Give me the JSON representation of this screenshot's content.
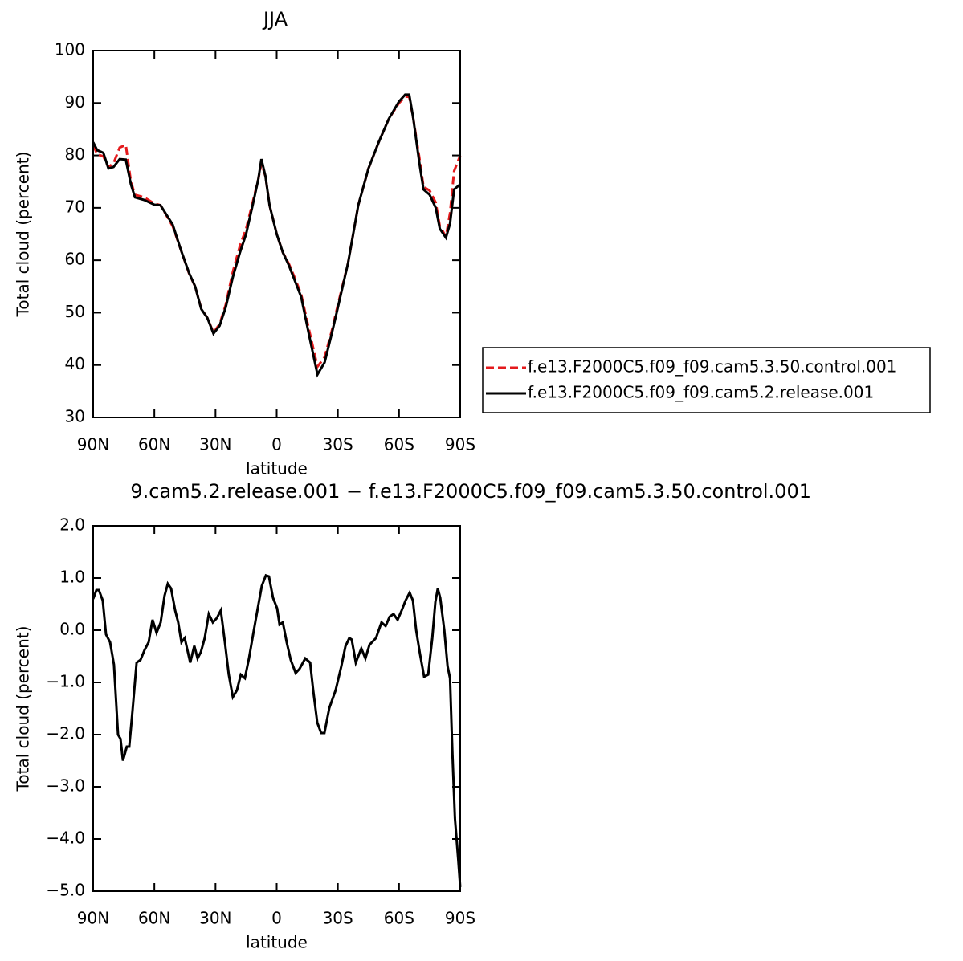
{
  "chart_data": [
    {
      "type": "line",
      "title": "JJA",
      "xlabel": "latitude",
      "ylabel": "Total cloud (percent)",
      "x": [
        90,
        88,
        85,
        82.5,
        80,
        77,
        74,
        71.5,
        69.5,
        65,
        60,
        57,
        51,
        47,
        43,
        40,
        37,
        34,
        31,
        28,
        25,
        21.5,
        18,
        15,
        11.5,
        9,
        7.5,
        5.5,
        3.5,
        0,
        -3,
        -6,
        -9,
        -12,
        -16,
        -20,
        -23.5,
        -27,
        -30,
        -35,
        -40,
        -45,
        -50,
        -55,
        -60,
        -63,
        -65,
        -67,
        -70,
        -72,
        -75,
        -78,
        -80,
        -83,
        -85,
        -87,
        -90
      ],
      "series": [
        {
          "name": "f.e13.F2000C5.f09_f09.cam5.3.50.control.001",
          "color": "#e41a1c",
          "linestyle": "dashed",
          "values": [
            82,
            80.2,
            79.8,
            77.8,
            78.5,
            81.5,
            82,
            75,
            72.5,
            72,
            70.8,
            70.5,
            66.5,
            62,
            57.5,
            55,
            50.8,
            49,
            46.2,
            47.8,
            51.5,
            57.8,
            62.8,
            66,
            71.5,
            75.5,
            78.5,
            76,
            70.5,
            65,
            61.5,
            59.3,
            56.5,
            53.5,
            46.5,
            39.7,
            41.5,
            46.5,
            51.5,
            59.5,
            70.5,
            77.5,
            82.5,
            87,
            90,
            91.2,
            91.2,
            87,
            79.5,
            74,
            73.3,
            71,
            66.5,
            64.5,
            69,
            77,
            80
          ]
        },
        {
          "name": "f.e13.F2000C5.f09_f09.cam5.2.release.001",
          "color": "#000000",
          "linestyle": "solid",
          "values": [
            82.5,
            81,
            80.5,
            77.5,
            77.8,
            79.3,
            79.2,
            74.5,
            72,
            71.5,
            70.6,
            70.5,
            66.8,
            62,
            57.6,
            55,
            50.7,
            49,
            46,
            47.5,
            51,
            56.8,
            61.5,
            65,
            71,
            75.5,
            79.3,
            76,
            70.5,
            65,
            61.5,
            59,
            56,
            53,
            45.5,
            38.2,
            40.5,
            46,
            51,
            59.5,
            70.5,
            77.5,
            82.5,
            87,
            90.3,
            91.6,
            91.6,
            87,
            78.5,
            73.5,
            72.5,
            70,
            66,
            64.3,
            67,
            73.5,
            74.5
          ]
        }
      ],
      "xlim": [
        90,
        -90
      ],
      "xticks": [
        {
          "value": 90,
          "label": "90N"
        },
        {
          "value": 60,
          "label": "60N"
        },
        {
          "value": 30,
          "label": "30N"
        },
        0,
        {
          "value": -30,
          "label": "30S"
        },
        {
          "value": -60,
          "label": "60S"
        },
        {
          "value": -90,
          "label": "90S"
        }
      ],
      "ylim": [
        30,
        100
      ],
      "yticks": [
        30,
        40,
        50,
        60,
        70,
        80,
        90,
        100
      ],
      "legend": "right"
    },
    {
      "type": "line",
      "title": "9.cam5.2.release.001 − f.e13.F2000C5.f09_f09.cam5.3.50.control.001",
      "xlabel": "latitude",
      "ylabel": "Total cloud (percent)",
      "x": [
        90,
        88.4,
        87.2,
        85.3,
        83.7,
        81.7,
        79.8,
        77.8,
        76.6,
        75.4,
        73.5,
        72.3,
        70.7,
        68.7,
        66.8,
        64.8,
        62.8,
        60.9,
        58.9,
        56.9,
        55,
        53.4,
        51.8,
        49.8,
        48.3,
        46.7,
        45.1,
        42.4,
        40.4,
        38.8,
        37.2,
        35.3,
        33.3,
        31.3,
        29.4,
        27.4,
        25.4,
        23.5,
        21.5,
        19.5,
        17.6,
        15.6,
        13.6,
        11.2,
        9.3,
        7.3,
        5.3,
        3.8,
        1.8,
        -0.2,
        -1.4,
        -3,
        -4.9,
        -6.9,
        -9.3,
        -11.2,
        -14,
        -16.4,
        -17.9,
        -19.9,
        -21.8,
        -23.4,
        -25.8,
        -28.9,
        -31.7,
        -33.7,
        -35.6,
        -36.8,
        -38.8,
        -41.5,
        -43.5,
        -45.5,
        -48.7,
        -51.4,
        -53.4,
        -55.4,
        -57.3,
        -59.3,
        -61.3,
        -63.2,
        -65.2,
        -66.8,
        -68.4,
        -70.3,
        -72.3,
        -74.3,
        -76.3,
        -77.8,
        -79,
        -80.2,
        -82.2,
        -83.8,
        -85,
        -86.2,
        -87.4,
        -89,
        -90
      ],
      "values": [
        0.6,
        0.77,
        0.77,
        0.57,
        -0.08,
        -0.23,
        -0.66,
        -2.0,
        -2.08,
        -2.5,
        -2.23,
        -2.23,
        -1.54,
        -0.62,
        -0.57,
        -0.38,
        -0.23,
        0.2,
        -0.05,
        0.15,
        0.66,
        0.89,
        0.8,
        0.38,
        0.15,
        -0.23,
        -0.15,
        -0.62,
        -0.3,
        -0.54,
        -0.42,
        -0.15,
        0.31,
        0.15,
        0.23,
        0.38,
        -0.23,
        -0.85,
        -1.28,
        -1.15,
        -0.85,
        -0.92,
        -0.54,
        0.0,
        0.42,
        0.85,
        1.05,
        1.03,
        0.62,
        0.42,
        0.11,
        0.15,
        -0.23,
        -0.57,
        -0.82,
        -0.74,
        -0.54,
        -0.62,
        -1.15,
        -1.77,
        -1.97,
        -1.97,
        -1.49,
        -1.15,
        -0.69,
        -0.31,
        -0.15,
        -0.18,
        -0.62,
        -0.35,
        -0.54,
        -0.28,
        -0.15,
        0.15,
        0.08,
        0.26,
        0.31,
        0.2,
        0.38,
        0.57,
        0.72,
        0.57,
        0.0,
        -0.46,
        -0.89,
        -0.85,
        -0.15,
        0.54,
        0.8,
        0.62,
        0.0,
        -0.69,
        -0.92,
        -2.38,
        -3.6,
        -4.38,
        -4.92
      ],
      "color": "#000000",
      "xlim": [
        90,
        -90
      ],
      "xticks": [
        {
          "value": 90,
          "label": "90N"
        },
        {
          "value": 60,
          "label": "60N"
        },
        {
          "value": 30,
          "label": "30N"
        },
        0,
        {
          "value": -30,
          "label": "30S"
        },
        {
          "value": -60,
          "label": "60S"
        },
        {
          "value": -90,
          "label": "90S"
        }
      ],
      "ylim": [
        -5,
        2
      ],
      "yticks": [
        {
          "value": -5,
          "label": "−5.0"
        },
        {
          "value": -4,
          "label": "−4.0"
        },
        {
          "value": -3,
          "label": "−3.0"
        },
        {
          "value": -2,
          "label": "−2.0"
        },
        {
          "value": -1,
          "label": "−1.0"
        },
        {
          "value": 0,
          "label": "0.0"
        },
        {
          "value": 1,
          "label": "1.0"
        },
        {
          "value": 2,
          "label": "2.0"
        }
      ]
    }
  ]
}
